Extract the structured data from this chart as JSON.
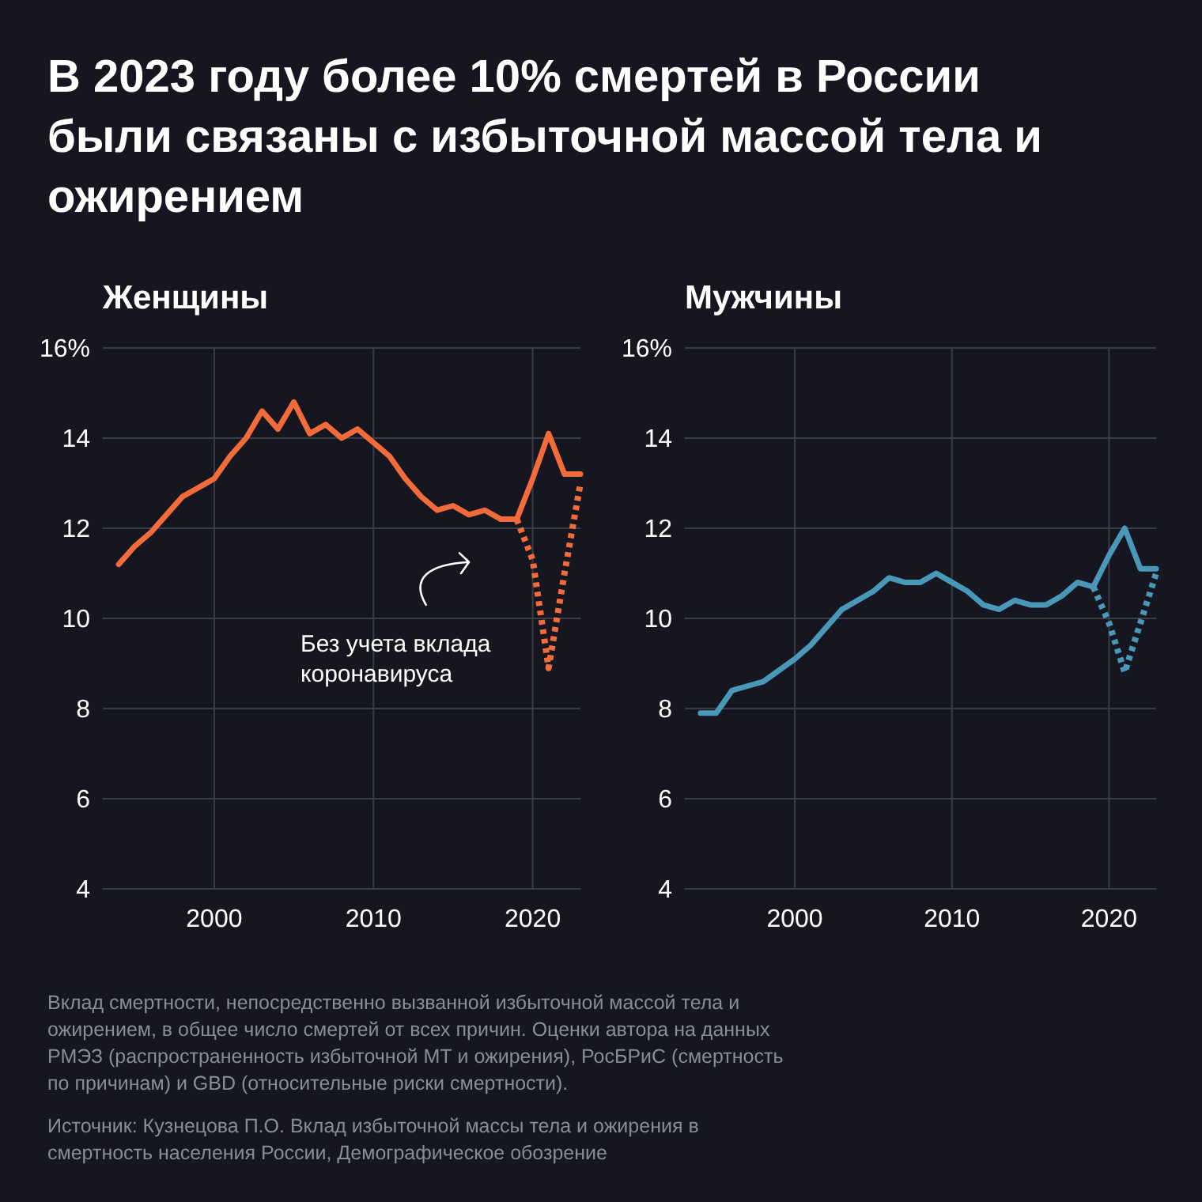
{
  "chart_data": [
    {
      "type": "line",
      "title": "В 2023 году более 10% смертей в России были связаны с избыточной массой тела и ожирением",
      "subtitle": "Женщины",
      "x": [
        1994,
        1995,
        1996,
        1997,
        1998,
        1999,
        2000,
        2001,
        2002,
        2003,
        2004,
        2005,
        2006,
        2007,
        2008,
        2009,
        2010,
        2011,
        2012,
        2013,
        2014,
        2015,
        2016,
        2017,
        2018,
        2019,
        2020,
        2021,
        2022,
        2023
      ],
      "series": [
        {
          "color": "#f26b3a",
          "values": [
            11.2,
            11.6,
            11.9,
            12.3,
            12.7,
            12.9,
            13.1,
            13.6,
            14.0,
            14.6,
            14.2,
            14.8,
            14.1,
            14.3,
            14.0,
            14.2,
            13.9,
            13.6,
            13.1,
            12.7,
            12.4,
            12.5,
            12.3,
            12.4,
            12.2,
            12.2,
            13.1,
            14.1,
            13.2,
            13.2
          ]
        },
        {
          "color": "#f26b3a",
          "line_style": "dotted",
          "x": [
            2019,
            2020,
            2021,
            2022,
            2023
          ],
          "values": [
            12.2,
            11.3,
            8.9,
            11.0,
            13.0
          ]
        }
      ],
      "xlim": [
        1993,
        2023
      ],
      "xticks": [
        2000,
        2010,
        2020
      ],
      "ylim": [
        4,
        16
      ],
      "yticks": [
        4,
        6,
        8,
        10,
        12,
        14,
        {
          "value": 16,
          "label": "16%"
        }
      ],
      "grid": true,
      "annotations": [
        "Без учета вклада коронавируса",
        "Вклад смертности, непосредственно вызванной избыточной массой тела и ожирением, в общее число смертей от всех причин. Оценки автора на данных РМЭЗ (распространенность избыточной МТ и ожирения), РосБРиС (смертность по причинам) и GBD (относительные риски смертности).",
        "Источник: Кузнецова П.О. Вклад избыточной массы тела и ожирения в смертность населения России, Демографическое обозрение"
      ]
    },
    {
      "type": "line",
      "subtitle": "Мужчины",
      "x": [
        1994,
        1995,
        1996,
        1997,
        1998,
        1999,
        2000,
        2001,
        2002,
        2003,
        2004,
        2005,
        2006,
        2007,
        2008,
        2009,
        2010,
        2011,
        2012,
        2013,
        2014,
        2015,
        2016,
        2017,
        2018,
        2019,
        2020,
        2021,
        2022,
        2023
      ],
      "series": [
        {
          "color": "#4a98b8",
          "values": [
            7.9,
            7.9,
            8.4,
            8.5,
            8.6,
            8.85,
            9.1,
            9.4,
            9.8,
            10.2,
            10.4,
            10.6,
            10.9,
            10.8,
            10.8,
            11.0,
            10.8,
            10.6,
            10.3,
            10.2,
            10.4,
            10.3,
            10.3,
            10.5,
            10.8,
            10.7,
            11.4,
            12.0,
            11.1,
            11.1
          ]
        },
        {
          "color": "#4a98b8",
          "line_style": "dotted",
          "x": [
            2019,
            2020,
            2021,
            2022,
            2023
          ],
          "values": [
            10.7,
            9.9,
            8.8,
            9.9,
            11.0
          ]
        }
      ],
      "xlim": [
        1993,
        2023
      ],
      "xticks": [
        2000,
        2010,
        2020
      ],
      "ylim": [
        4,
        16
      ],
      "yticks": [
        4,
        6,
        8,
        10,
        12,
        14,
        {
          "value": 16,
          "label": "16%"
        }
      ],
      "grid": true
    }
  ]
}
